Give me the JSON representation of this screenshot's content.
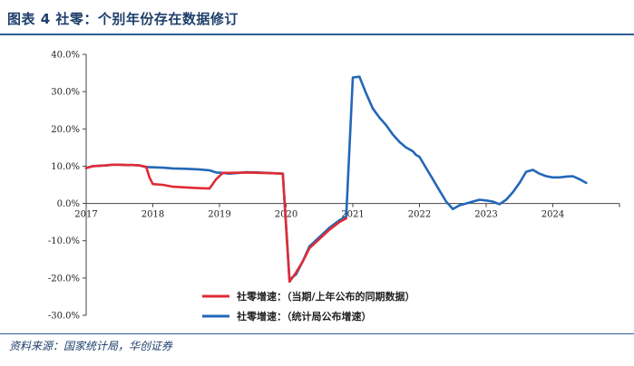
{
  "header": {
    "title": "图表 4   社零：个别年份存在数据修订"
  },
  "footer": {
    "source": "资料来源：国家统计局，华创证券"
  },
  "chart_data": {
    "type": "line",
    "title": "",
    "xlabel": "",
    "ylabel": "",
    "x_ticks": [
      "2017",
      "2018",
      "2019",
      "2020",
      "2021",
      "2022",
      "2023",
      "2024"
    ],
    "y_ticks": [
      "40.0%",
      "30.0%",
      "20.0%",
      "10.0%",
      "0.0%",
      "-10.0%",
      "-20.0%",
      "-30.0%"
    ],
    "ylim": [
      -30,
      40
    ],
    "xlim": [
      2017,
      2025
    ],
    "grid": false,
    "legend_position": "bottom-center",
    "series": [
      {
        "name": "社零增速：（当期/上年公布的同期数据）",
        "color": "#e02b35",
        "points": [
          [
            2017.0,
            9.5
          ],
          [
            2017.1,
            10.0
          ],
          [
            2017.3,
            10.2
          ],
          [
            2017.4,
            10.4
          ],
          [
            2017.5,
            10.4
          ],
          [
            2017.6,
            10.3
          ],
          [
            2017.7,
            10.3
          ],
          [
            2017.8,
            10.2
          ],
          [
            2017.9,
            9.8
          ],
          [
            2017.95,
            7.0
          ],
          [
            2018.0,
            5.2
          ],
          [
            2018.15,
            5.0
          ],
          [
            2018.3,
            4.5
          ],
          [
            2018.5,
            4.3
          ],
          [
            2018.7,
            4.1
          ],
          [
            2018.85,
            4.0
          ],
          [
            2018.95,
            6.5
          ],
          [
            2019.05,
            8.2
          ],
          [
            2019.15,
            8.2
          ],
          [
            2019.4,
            8.3
          ],
          [
            2019.6,
            8.2
          ],
          [
            2019.8,
            8.1
          ],
          [
            2019.95,
            8.0
          ],
          [
            2020.05,
            -21.0
          ],
          [
            2020.15,
            -18.5
          ],
          [
            2020.25,
            -15.5
          ],
          [
            2020.35,
            -12.0
          ],
          [
            2020.5,
            -9.5
          ],
          [
            2020.65,
            -7.0
          ],
          [
            2020.8,
            -5.0
          ],
          [
            2020.9,
            -4.0
          ]
        ]
      },
      {
        "name": "社零增速：（统计局公布增速）",
        "color": "#2367b8",
        "points": [
          [
            2017.0,
            9.5
          ],
          [
            2017.1,
            10.0
          ],
          [
            2017.3,
            10.2
          ],
          [
            2017.4,
            10.4
          ],
          [
            2017.5,
            10.4
          ],
          [
            2017.6,
            10.3
          ],
          [
            2017.7,
            10.3
          ],
          [
            2017.8,
            10.2
          ],
          [
            2017.9,
            9.8
          ],
          [
            2018.0,
            9.7
          ],
          [
            2018.15,
            9.6
          ],
          [
            2018.3,
            9.4
          ],
          [
            2018.5,
            9.3
          ],
          [
            2018.7,
            9.1
          ],
          [
            2018.85,
            8.9
          ],
          [
            2018.95,
            8.3
          ],
          [
            2019.05,
            8.2
          ],
          [
            2019.15,
            8.0
          ],
          [
            2019.3,
            8.2
          ],
          [
            2019.4,
            8.4
          ],
          [
            2019.6,
            8.3
          ],
          [
            2019.8,
            8.1
          ],
          [
            2019.95,
            8.0
          ],
          [
            2020.05,
            -20.5
          ],
          [
            2020.15,
            -19.0
          ],
          [
            2020.25,
            -15.5
          ],
          [
            2020.35,
            -11.5
          ],
          [
            2020.5,
            -9.0
          ],
          [
            2020.65,
            -6.5
          ],
          [
            2020.8,
            -4.5
          ],
          [
            2020.9,
            -3.5
          ],
          [
            2021.0,
            33.8
          ],
          [
            2021.1,
            34.0
          ],
          [
            2021.2,
            29.5
          ],
          [
            2021.3,
            25.5
          ],
          [
            2021.4,
            23.0
          ],
          [
            2021.5,
            21.0
          ],
          [
            2021.6,
            18.5
          ],
          [
            2021.7,
            16.5
          ],
          [
            2021.8,
            15.0
          ],
          [
            2021.9,
            14.0
          ],
          [
            2021.95,
            13.0
          ],
          [
            2022.0,
            12.5
          ],
          [
            2022.1,
            9.5
          ],
          [
            2022.2,
            6.5
          ],
          [
            2022.3,
            3.5
          ],
          [
            2022.4,
            0.5
          ],
          [
            2022.5,
            -1.5
          ],
          [
            2022.6,
            -0.5
          ],
          [
            2022.7,
            0.0
          ],
          [
            2022.8,
            0.5
          ],
          [
            2022.9,
            1.0
          ],
          [
            2023.0,
            0.8
          ],
          [
            2023.1,
            0.5
          ],
          [
            2023.2,
            -0.2
          ],
          [
            2023.3,
            1.0
          ],
          [
            2023.4,
            3.0
          ],
          [
            2023.5,
            5.5
          ],
          [
            2023.6,
            8.5
          ],
          [
            2023.7,
            9.0
          ],
          [
            2023.8,
            8.0
          ],
          [
            2023.9,
            7.3
          ],
          [
            2024.0,
            7.0
          ],
          [
            2024.1,
            7.0
          ],
          [
            2024.2,
            7.2
          ],
          [
            2024.3,
            7.3
          ],
          [
            2024.4,
            6.5
          ],
          [
            2024.5,
            5.5
          ]
        ]
      }
    ]
  }
}
